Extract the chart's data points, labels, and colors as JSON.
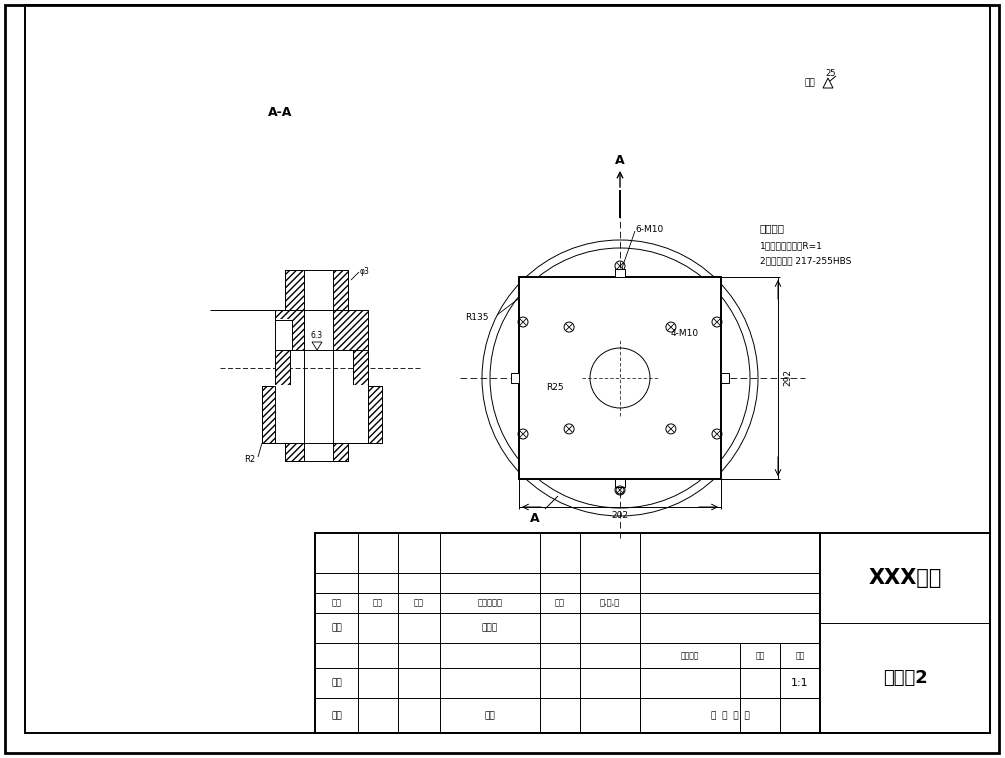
{
  "bg_color": "#ffffff",
  "title_university": "XXX大学",
  "title_part": "法兰盘2",
  "scale": "1:1",
  "view_aa": "A-A",
  "view_a": "A",
  "dim_202": "202",
  "dim_292": "292",
  "dim_r135": "R135",
  "dim_r25": "R25",
  "dim_6m10": "6-M10",
  "dim_4m10": "4-M10",
  "dim_r2": "R2",
  "dim_rough": "6.3",
  "dim_rough_other": "其它",
  "dim_25": "25",
  "tech_title": "技术要求",
  "tech_req1": "1、未注明倒角为R=1",
  "tech_req2": "2、调质处理 217-255HBS",
  "tb_biaoji": "标记",
  "tb_chushu": "处数",
  "tb_fenqu": "分区",
  "tb_genghai": "更改文件号",
  "tb_qianzi": "签字",
  "tb_cheyueri": "车,月,日",
  "tb_sheji": "设计",
  "tb_biaozhunhua": "标准化",
  "tb_shenhe": "审核",
  "tb_gongyi": "工艺",
  "tb_pizhun": "批准",
  "tb_jieduan": "阶段标记",
  "tb_zhongliang": "重量",
  "tb_bili": "比例",
  "tb_11": "1:1",
  "tb_gong": "共",
  "tb_zhang1": "张",
  "tb_di": "第",
  "tb_zhang2": "张"
}
